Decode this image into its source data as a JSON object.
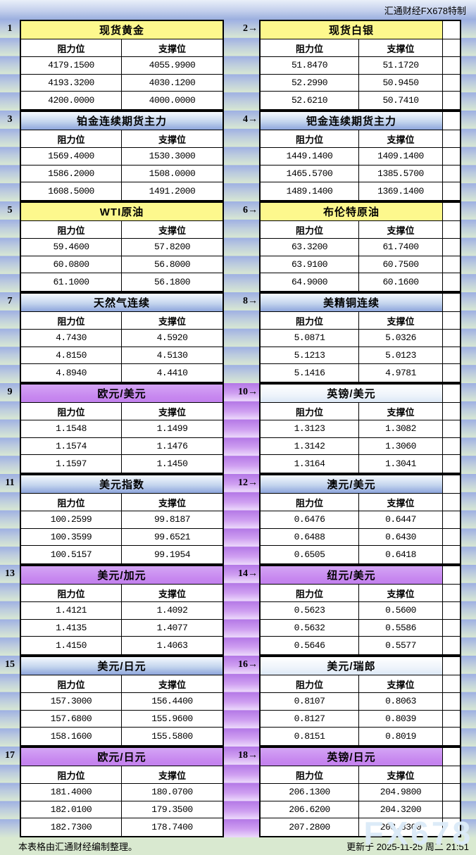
{
  "page": {
    "brand_header": "汇通财经FX678特制",
    "footer_left": "本表格由汇通财经编制整理。",
    "footer_right": "更新于 2025-11-25 周二 21:51",
    "watermark": "FX678"
  },
  "labels": {
    "resistance": "阻力位",
    "support": "支撑位"
  },
  "colors": {
    "title_yellow": "#fdf88d",
    "title_blue": "#8ea6dc",
    "title_purple": "#c787ef",
    "band_blue": "#9eb0e3",
    "band_green": "#d8e8d3",
    "band_purple": "#b377e6",
    "footer_bg": "#d9e9d0",
    "grid_line": "#000000"
  },
  "blocks": [
    {
      "num": "1",
      "arrow_label": "1",
      "title": "现货黄金",
      "header_color": "yellow",
      "section": "commodity",
      "rows": [
        [
          "4179.1500",
          "4055.9900"
        ],
        [
          "4193.3200",
          "4030.1200"
        ],
        [
          "4200.0000",
          "4000.0000"
        ]
      ]
    },
    {
      "num": "2",
      "arrow_label": "2→",
      "title": "现货白银",
      "header_color": "yellow",
      "section": "commodity",
      "rows": [
        [
          "51.8470",
          "51.1720"
        ],
        [
          "52.2990",
          "50.9450"
        ],
        [
          "52.6210",
          "50.7410"
        ]
      ]
    },
    {
      "num": "3",
      "arrow_label": "3",
      "title": "铂金连续期货主力",
      "header_color": "blue",
      "section": "commodity",
      "rows": [
        [
          "1569.4000",
          "1530.3000"
        ],
        [
          "1586.2000",
          "1508.0000"
        ],
        [
          "1608.5000",
          "1491.2000"
        ]
      ]
    },
    {
      "num": "4",
      "arrow_label": "4→",
      "title": "钯金连续期货主力",
      "header_color": "blue",
      "section": "commodity",
      "rows": [
        [
          "1449.1400",
          "1409.1400"
        ],
        [
          "1465.5700",
          "1385.5700"
        ],
        [
          "1489.1400",
          "1369.1400"
        ]
      ]
    },
    {
      "num": "5",
      "arrow_label": "5",
      "title": "WTI原油",
      "header_color": "yellow",
      "section": "commodity",
      "rows": [
        [
          "59.4600",
          "57.8200"
        ],
        [
          "60.0800",
          "56.8000"
        ],
        [
          "61.1000",
          "56.1800"
        ]
      ]
    },
    {
      "num": "6",
      "arrow_label": "6→",
      "title": "布伦特原油",
      "header_color": "yellow",
      "section": "commodity",
      "rows": [
        [
          "63.3200",
          "61.7400"
        ],
        [
          "63.9100",
          "60.7500"
        ],
        [
          "64.9000",
          "60.1600"
        ]
      ]
    },
    {
      "num": "7",
      "arrow_label": "7",
      "title": "天然气连续",
      "header_color": "blue",
      "section": "commodity",
      "rows": [
        [
          "4.7430",
          "4.5920"
        ],
        [
          "4.8150",
          "4.5130"
        ],
        [
          "4.8940",
          "4.4410"
        ]
      ]
    },
    {
      "num": "8",
      "arrow_label": "8→",
      "title": "美精铜连续",
      "header_color": "blue",
      "section": "commodity",
      "rows": [
        [
          "5.0871",
          "5.0326"
        ],
        [
          "5.1213",
          "5.0123"
        ],
        [
          "5.1416",
          "4.9781"
        ]
      ]
    },
    {
      "num": "9",
      "arrow_label": "9",
      "title": "欧元/美元",
      "header_color": "purple",
      "section": "fx",
      "rows": [
        [
          "1.1548",
          "1.1499"
        ],
        [
          "1.1574",
          "1.1476"
        ],
        [
          "1.1597",
          "1.1450"
        ]
      ]
    },
    {
      "num": "10",
      "arrow_label": "10→",
      "title": "英镑/美元",
      "header_color": "light",
      "section": "fx",
      "rows": [
        [
          "1.3123",
          "1.3082"
        ],
        [
          "1.3142",
          "1.3060"
        ],
        [
          "1.3164",
          "1.3041"
        ]
      ]
    },
    {
      "num": "11",
      "arrow_label": "11",
      "title": "美元指数",
      "header_color": "blue",
      "section": "fx",
      "rows": [
        [
          "100.2599",
          "99.8187"
        ],
        [
          "100.3599",
          "99.6521"
        ],
        [
          "100.5157",
          "99.1954"
        ]
      ]
    },
    {
      "num": "12",
      "arrow_label": "12→",
      "title": "澳元/美元",
      "header_color": "blue",
      "section": "fx",
      "rows": [
        [
          "0.6476",
          "0.6447"
        ],
        [
          "0.6488",
          "0.6430"
        ],
        [
          "0.6505",
          "0.6418"
        ]
      ]
    },
    {
      "num": "13",
      "arrow_label": "13",
      "title": "美元/加元",
      "header_color": "purple",
      "section": "fx",
      "rows": [
        [
          "1.4121",
          "1.4092"
        ],
        [
          "1.4135",
          "1.4077"
        ],
        [
          "1.4150",
          "1.4063"
        ]
      ]
    },
    {
      "num": "14",
      "arrow_label": "14→",
      "title": "纽元/美元",
      "header_color": "purple",
      "section": "fx",
      "rows": [
        [
          "0.5623",
          "0.5600"
        ],
        [
          "0.5632",
          "0.5586"
        ],
        [
          "0.5646",
          "0.5577"
        ]
      ]
    },
    {
      "num": "15",
      "arrow_label": "15",
      "title": "美元/日元",
      "header_color": "blue",
      "section": "fx",
      "rows": [
        [
          "157.3000",
          "156.4400"
        ],
        [
          "157.6800",
          "155.9600"
        ],
        [
          "158.1600",
          "155.5800"
        ]
      ]
    },
    {
      "num": "16",
      "arrow_label": "16→",
      "title": "美元/瑞郎",
      "header_color": "light",
      "section": "fx",
      "rows": [
        [
          "0.8107",
          "0.8063"
        ],
        [
          "0.8127",
          "0.8039"
        ],
        [
          "0.8151",
          "0.8019"
        ]
      ]
    },
    {
      "num": "17",
      "arrow_label": "17",
      "title": "欧元/日元",
      "header_color": "purple",
      "section": "fx",
      "rows": [
        [
          "181.4000",
          "180.0700"
        ],
        [
          "182.0100",
          "179.3500"
        ],
        [
          "182.7300",
          "178.7400"
        ]
      ]
    },
    {
      "num": "18",
      "arrow_label": "18→",
      "title": "英镑/日元",
      "header_color": "purple",
      "section": "fx",
      "rows": [
        [
          "206.1300",
          "204.9800"
        ],
        [
          "206.6200",
          "204.3200"
        ],
        [
          "207.2800",
          "203.8300"
        ]
      ]
    }
  ]
}
